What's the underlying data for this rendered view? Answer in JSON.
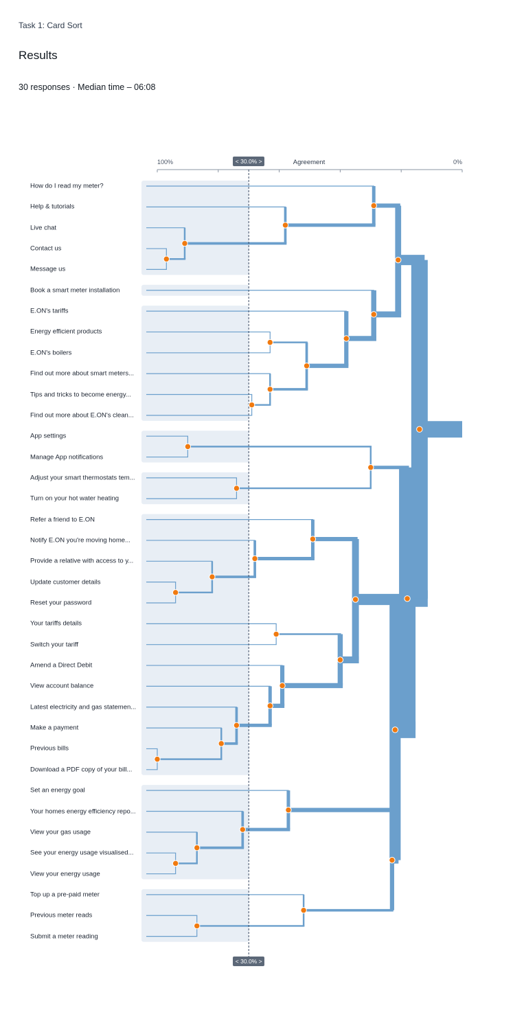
{
  "header": {
    "task_title": "Task 1: Card Sort",
    "section_title": "Results",
    "summary": "30 responses · Median time – 06:08"
  },
  "axis": {
    "title": "Agreement",
    "left_label": "100%",
    "right_label": "0%",
    "threshold_label": "< 30.0% >",
    "threshold_percent": 30.0
  },
  "colors": {
    "branch": "#6b9fcc",
    "node": "#f07a10",
    "group_bg": "#e8eef5",
    "threshold_line": "#3a4a63",
    "handle_bg": "#5c6878"
  },
  "cards": [
    "How do I read my meter?",
    "Help & tutorials",
    "Live chat",
    "Contact us",
    "Message us",
    "Book a smart meter installation",
    "E.ON's tariffs",
    "Energy efficient products",
    "E.ON's boilers",
    "Find out more about smart meters...",
    "Tips and tricks to become energy...",
    "Find out more about E.ON's clean...",
    "App settings",
    "Manage App notifications",
    "Adjust your smart thermostats tem...",
    "Turn on your hot water heating",
    "Refer a friend to E.ON",
    "Notify E.ON you're moving home...",
    "Provide a relative with access to y...",
    "Update customer details",
    "Reset your password",
    "Your tariffs details",
    "Switch your tariff",
    "Amend a Direct Debit",
    "View account balance",
    "Latest electricity and gas statemen...",
    "Make a payment",
    "Previous bills",
    "Download a PDF copy of your bill...",
    "Set an energy goal",
    "Your homes energy efficiency repo...",
    "View your gas usage",
    "See your energy usage visualised...",
    "View your energy usage",
    "Top up a pre-paid meter",
    "Previous meter reads",
    "Submit a meter reading"
  ],
  "groups": [
    [
      0,
      4
    ],
    [
      5,
      5
    ],
    [
      6,
      11
    ],
    [
      12,
      13
    ],
    [
      14,
      15
    ],
    [
      16,
      28
    ],
    [
      29,
      33
    ],
    [
      34,
      36
    ]
  ],
  "merges": [
    {
      "id": "n1",
      "a": 3,
      "b": 4,
      "agreement": 97
    },
    {
      "id": "n2",
      "a": 2,
      "b": "n1",
      "agreement": 91
    },
    {
      "id": "n3",
      "a": 1,
      "b": "n2",
      "agreement": 58
    },
    {
      "id": "n4",
      "a": 0,
      "b": "n3",
      "agreement": 29
    },
    {
      "id": "n5",
      "a": 10,
      "b": 11,
      "agreement": 69
    },
    {
      "id": "n6",
      "a": 9,
      "b": "n5",
      "agreement": 63
    },
    {
      "id": "n7",
      "a": 7,
      "b": 8,
      "agreement": 63
    },
    {
      "id": "n8",
      "a": "n7",
      "b": "n6",
      "agreement": 51
    },
    {
      "id": "n9",
      "a": 6,
      "b": "n8",
      "agreement": 38
    },
    {
      "id": "n10",
      "a": 5,
      "b": "n9",
      "agreement": 29
    },
    {
      "id": "n11",
      "a": "n4",
      "b": "n10",
      "agreement": 21
    },
    {
      "id": "n12",
      "a": 12,
      "b": 13,
      "agreement": 90
    },
    {
      "id": "n13",
      "a": 14,
      "b": 15,
      "agreement": 74
    },
    {
      "id": "n14",
      "a": "n12",
      "b": "n13",
      "agreement": 30
    },
    {
      "id": "n15",
      "a": 27,
      "b": 28,
      "agreement": 100
    },
    {
      "id": "n16",
      "a": 26,
      "b": "n15",
      "agreement": 79
    },
    {
      "id": "n17",
      "a": 25,
      "b": "n16",
      "agreement": 74
    },
    {
      "id": "n18",
      "a": 24,
      "b": "n17",
      "agreement": 63
    },
    {
      "id": "n19",
      "a": 23,
      "b": "n18",
      "agreement": 59
    },
    {
      "id": "n20",
      "a": 21,
      "b": 22,
      "agreement": 61
    },
    {
      "id": "n21",
      "a": "n20",
      "b": "n19",
      "agreement": 40
    },
    {
      "id": "n22",
      "a": 19,
      "b": 20,
      "agreement": 94
    },
    {
      "id": "n23",
      "a": 18,
      "b": "n22",
      "agreement": 82
    },
    {
      "id": "n24",
      "a": 17,
      "b": "n23",
      "agreement": 68
    },
    {
      "id": "n25",
      "a": 16,
      "b": "n24",
      "agreement": 49
    },
    {
      "id": "n26",
      "a": "n25",
      "b": "n21",
      "agreement": 35
    },
    {
      "id": "n27",
      "a": 32,
      "b": 33,
      "agreement": 94
    },
    {
      "id": "n28",
      "a": 31,
      "b": "n27",
      "agreement": 87
    },
    {
      "id": "n29",
      "a": 30,
      "b": "n28",
      "agreement": 72
    },
    {
      "id": "n30",
      "a": 29,
      "b": "n29",
      "agreement": 57
    },
    {
      "id": "n31",
      "a": 35,
      "b": 36,
      "agreement": 87
    },
    {
      "id": "n32",
      "a": 34,
      "b": "n31",
      "agreement": 52
    },
    {
      "id": "n33",
      "a": "n30",
      "b": "n32",
      "agreement": 23
    },
    {
      "id": "n34",
      "a": "n26",
      "b": "n33",
      "agreement": 22
    },
    {
      "id": "n35",
      "a": "n14",
      "b": "n34",
      "agreement": 18
    },
    {
      "id": "n36",
      "a": "n11",
      "b": "n35",
      "agreement": 14
    }
  ]
}
